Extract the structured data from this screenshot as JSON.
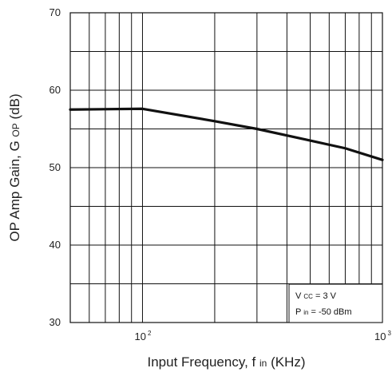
{
  "chart_data": {
    "type": "line",
    "x_scale": "log",
    "xlim": [
      50,
      1000
    ],
    "ylim": [
      30,
      70
    ],
    "grid": true,
    "series": [
      {
        "values": [
          [
            50,
            57.5
          ],
          [
            100,
            57.6
          ],
          [
            200,
            56
          ],
          [
            300,
            55
          ],
          [
            500,
            53.5
          ],
          [
            700,
            52.5
          ],
          [
            1000,
            51
          ]
        ]
      }
    ],
    "x_ticks": [
      {
        "value": 100,
        "base": "10",
        "exponent": "2"
      },
      {
        "value": 1000,
        "base": "10",
        "exponent": "3"
      }
    ],
    "y_ticks": [
      "30",
      "40",
      "50",
      "60",
      "70"
    ],
    "x_axis_label": {
      "text": "Input Frequency, f",
      "subscript": "in",
      "unit": " (KHz)"
    },
    "y_axis_label": {
      "text": "OP Amp Gain, G",
      "subscript": "OP",
      "unit": " (dB)"
    },
    "legend": {
      "placement": "bottom-right",
      "lines": [
        {
          "main": "V",
          "subscript": "CC",
          "rest": " = 3 V"
        },
        {
          "main": "P",
          "subscript": "in",
          "rest": " = -50 dBm"
        }
      ]
    }
  }
}
